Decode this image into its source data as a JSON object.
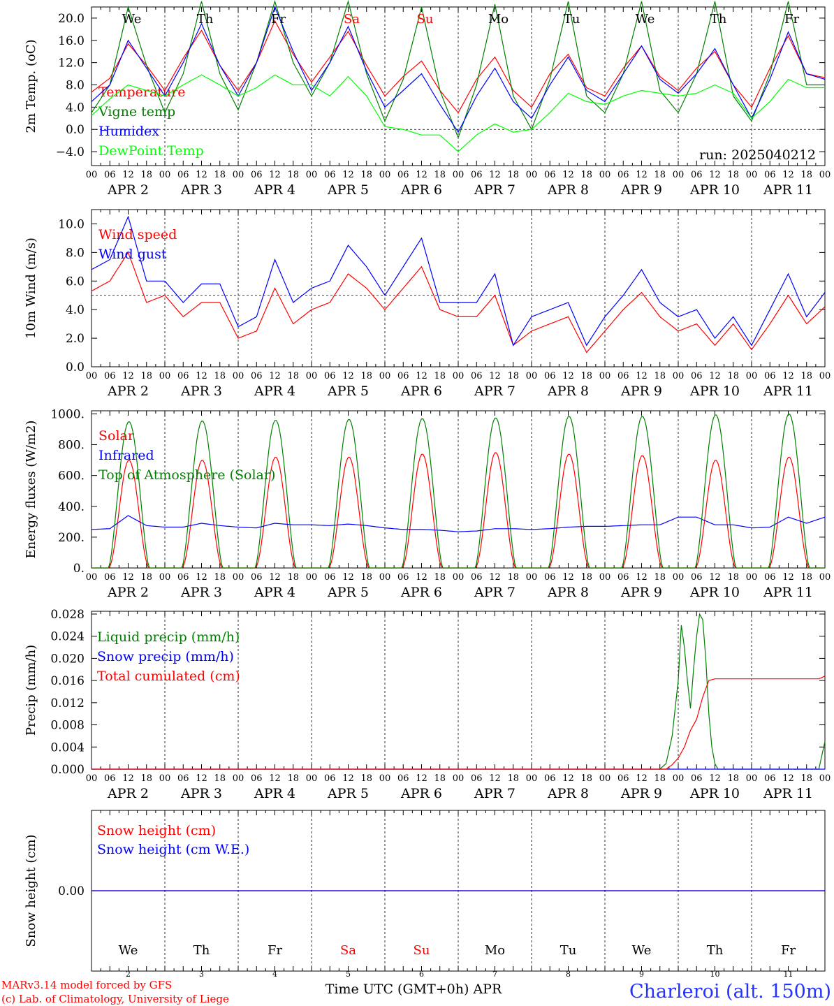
{
  "run_label": "run: 2025040212",
  "station_label": "Charleroi (alt. 150m)",
  "credit_1": "MARv3.14 model forced by GFS",
  "credit_2": "(c) Lab. of Climatology, University of Liege",
  "x_axis_title": "Time UTC (GMT+0h) APR",
  "hour_ticks": [
    "00",
    "06",
    "12",
    "18"
  ],
  "final_hour_label": "00",
  "date_labels": [
    "APR  2",
    "APR  3",
    "APR  4",
    "APR  5",
    "APR  6",
    "APR  7",
    "APR  8",
    "APR  9",
    "APR 10",
    "APR 11"
  ],
  "day_numbers": [
    "2",
    "3",
    "4",
    "5",
    "6",
    "7",
    "8",
    "9",
    "10",
    "11"
  ],
  "weekdays": [
    {
      "label": "We",
      "weekend": false
    },
    {
      "label": "Th",
      "weekend": false
    },
    {
      "label": "Fr",
      "weekend": false
    },
    {
      "label": "Sa",
      "weekend": true
    },
    {
      "label": "Su",
      "weekend": true
    },
    {
      "label": "Mo",
      "weekend": false
    },
    {
      "label": "Tu",
      "weekend": false
    },
    {
      "label": "We",
      "weekend": false
    },
    {
      "label": "Th",
      "weekend": false
    },
    {
      "label": "Fr",
      "weekend": false
    }
  ],
  "colors": {
    "red": "#ff0000",
    "green": "#008000",
    "blue": "#0000ff",
    "lightgreen": "#00ff00",
    "weekend": "#ff0000",
    "station": "#2233ff"
  },
  "chart_data": [
    {
      "type": "line",
      "ylabel": "2m Temp. (oC)",
      "ylim": [
        -6.5,
        22
      ],
      "yticks": [
        -4,
        0,
        4,
        8,
        12,
        16,
        20
      ],
      "ytick_labels": [
        "−4.0",
        "0.0",
        "4.0",
        "8.0",
        "12.0",
        "16.0",
        "20.0"
      ],
      "zero_line": 0,
      "series": [
        {
          "name": "Temperature",
          "color": "red",
          "x": [
            0,
            6,
            12,
            18,
            24,
            30,
            36,
            42,
            48,
            54,
            60,
            66,
            72,
            78,
            84,
            90,
            96,
            102,
            108,
            114,
            120,
            126,
            132,
            138,
            144,
            150,
            156,
            162,
            168,
            174,
            180,
            186,
            192,
            198,
            204,
            210,
            216,
            222,
            228,
            234,
            240
          ],
          "y": [
            6.7,
            9.2,
            15.4,
            11.5,
            7.0,
            12.8,
            17.8,
            11.5,
            7.0,
            12.0,
            19.5,
            13.5,
            8.5,
            13.0,
            17.6,
            11.5,
            6.0,
            9.5,
            12.3,
            7.0,
            3.0,
            9.0,
            13.0,
            7.0,
            4.0,
            10.0,
            13.5,
            7.5,
            6.0,
            11.0,
            15.0,
            9.5,
            7.0,
            11.0,
            14.0,
            8.0,
            4.0,
            11.0,
            16.8,
            10.0,
            9.3
          ]
        },
        {
          "name": "Vigne temp",
          "color": "green",
          "x": [
            0,
            6,
            12,
            18,
            24,
            30,
            36,
            42,
            48,
            54,
            60,
            66,
            72,
            78,
            84,
            90,
            96,
            102,
            108,
            114,
            120,
            126,
            132,
            138,
            144,
            150,
            156,
            162,
            168,
            174,
            180,
            186,
            192,
            198,
            204,
            210,
            216,
            222,
            228,
            234,
            240
          ],
          "y": [
            3.0,
            8.0,
            22.0,
            11.5,
            3.0,
            10.0,
            23.0,
            10.0,
            3.5,
            12.0,
            23.0,
            12.0,
            6.0,
            12.0,
            23.0,
            10.0,
            1.5,
            9.0,
            22.0,
            7.0,
            -1.5,
            8.0,
            22.5,
            6.0,
            0.0,
            9.0,
            23.0,
            6.0,
            3.0,
            10.0,
            23.0,
            7.0,
            3.0,
            10.0,
            23.0,
            6.0,
            1.5,
            10.0,
            23.0,
            8.0,
            8.0
          ]
        },
        {
          "name": "Humidex",
          "color": "blue",
          "x": [
            0,
            6,
            12,
            18,
            24,
            30,
            36,
            42,
            48,
            54,
            60,
            66,
            72,
            78,
            84,
            90,
            96,
            102,
            108,
            114,
            120,
            126,
            132,
            138,
            144,
            150,
            156,
            162,
            168,
            174,
            180,
            186,
            192,
            198,
            204,
            210,
            216,
            222,
            228,
            234,
            240
          ],
          "y": [
            5.0,
            8.0,
            16.0,
            11.0,
            6.0,
            12.0,
            19.0,
            11.5,
            6.0,
            12.0,
            22.0,
            14.0,
            7.0,
            12.0,
            18.5,
            10.5,
            4.0,
            7.0,
            10.0,
            4.5,
            -0.5,
            6.0,
            11.0,
            5.0,
            2.0,
            8.0,
            13.0,
            7.0,
            5.0,
            10.0,
            15.0,
            9.0,
            6.5,
            10.0,
            14.5,
            8.0,
            2.0,
            9.0,
            17.5,
            10.0,
            9.0
          ]
        },
        {
          "name": "DewPoint Temp",
          "color": "lightgreen",
          "x": [
            0,
            6,
            12,
            18,
            24,
            30,
            36,
            42,
            48,
            54,
            60,
            66,
            72,
            78,
            84,
            90,
            96,
            102,
            108,
            114,
            120,
            126,
            132,
            138,
            144,
            150,
            156,
            162,
            168,
            174,
            180,
            186,
            192,
            198,
            204,
            210,
            216,
            222,
            228,
            234,
            240
          ],
          "y": [
            2.5,
            5.5,
            8.0,
            7.0,
            6.0,
            8.0,
            9.8,
            8.0,
            6.0,
            7.5,
            9.8,
            8.0,
            8.0,
            6.0,
            9.5,
            6.0,
            0.5,
            0.0,
            -1.0,
            -1.0,
            -4.0,
            -1.0,
            1.0,
            -0.5,
            0.0,
            3.0,
            6.5,
            5.0,
            4.5,
            6.0,
            7.0,
            6.5,
            6.0,
            6.5,
            8.0,
            6.5,
            2.0,
            5.0,
            9.0,
            7.5,
            7.5
          ]
        }
      ]
    },
    {
      "type": "line",
      "ylabel": "10m Wind (m/s)",
      "ylim": [
        0,
        11
      ],
      "yticks": [
        0,
        2,
        4,
        6,
        8,
        10
      ],
      "ytick_labels": [
        "0.0",
        "2.0",
        "4.0",
        "6.0",
        "8.0",
        "10.0"
      ],
      "ref_line": 5,
      "series": [
        {
          "name": "Wind speed",
          "color": "red",
          "x": [
            0,
            6,
            12,
            18,
            24,
            30,
            36,
            42,
            48,
            54,
            60,
            66,
            72,
            78,
            84,
            90,
            96,
            102,
            108,
            114,
            120,
            126,
            132,
            138,
            144,
            150,
            156,
            162,
            168,
            174,
            180,
            186,
            192,
            198,
            204,
            210,
            216,
            222,
            228,
            234,
            240
          ],
          "y": [
            5.3,
            6.0,
            8.0,
            4.5,
            5.0,
            3.5,
            4.5,
            4.5,
            2.0,
            2.5,
            5.5,
            3.0,
            4.0,
            4.5,
            6.5,
            5.5,
            4.0,
            5.5,
            7.0,
            4.0,
            3.5,
            3.5,
            5.0,
            1.5,
            2.5,
            3.0,
            3.5,
            1.0,
            2.5,
            4.0,
            5.2,
            3.5,
            2.5,
            3.0,
            1.5,
            3.0,
            1.2,
            3.0,
            5.0,
            3.0,
            4.2
          ]
        },
        {
          "name": "Wind gust",
          "color": "blue",
          "x": [
            0,
            6,
            12,
            18,
            24,
            30,
            36,
            42,
            48,
            54,
            60,
            66,
            72,
            78,
            84,
            90,
            96,
            102,
            108,
            114,
            120,
            126,
            132,
            138,
            144,
            150,
            156,
            162,
            168,
            174,
            180,
            186,
            192,
            198,
            204,
            210,
            216,
            222,
            228,
            234,
            240
          ],
          "y": [
            6.8,
            7.5,
            10.5,
            6.0,
            6.0,
            4.5,
            5.8,
            5.8,
            2.8,
            3.5,
            7.5,
            4.5,
            5.5,
            6.0,
            8.5,
            7.0,
            5.0,
            7.0,
            9.0,
            4.5,
            4.5,
            4.5,
            6.5,
            1.5,
            3.5,
            4.0,
            4.5,
            1.5,
            3.5,
            5.0,
            6.8,
            4.5,
            3.5,
            4.0,
            2.0,
            3.5,
            1.5,
            4.0,
            6.5,
            3.5,
            5.2
          ]
        }
      ]
    },
    {
      "type": "line",
      "ylabel": "Energy fluxes (W/m2)",
      "ylim": [
        0,
        1020
      ],
      "yticks": [
        0,
        200,
        400,
        600,
        800,
        1000
      ],
      "ytick_labels": [
        "0.",
        "200.",
        "400.",
        "600.",
        "800.",
        "1000."
      ],
      "daylight": {
        "sunrise_hour": 5.5,
        "sunset_hour": 19.0
      },
      "series": [
        {
          "name": "Solar",
          "color": "red",
          "day_peaks": [
            700,
            700,
            720,
            720,
            740,
            750,
            740,
            730,
            700,
            720
          ]
        },
        {
          "name": "Infrared",
          "color": "blue",
          "x": [
            0,
            6,
            12,
            18,
            24,
            30,
            36,
            42,
            48,
            54,
            60,
            66,
            72,
            78,
            84,
            90,
            96,
            102,
            108,
            114,
            120,
            126,
            132,
            138,
            144,
            150,
            156,
            162,
            168,
            174,
            180,
            186,
            192,
            198,
            204,
            210,
            216,
            222,
            228,
            234,
            240
          ],
          "y": [
            250,
            255,
            340,
            275,
            265,
            265,
            290,
            275,
            265,
            260,
            290,
            280,
            280,
            275,
            285,
            275,
            260,
            250,
            250,
            245,
            235,
            240,
            255,
            255,
            250,
            255,
            265,
            270,
            270,
            275,
            280,
            280,
            330,
            330,
            280,
            280,
            260,
            265,
            330,
            290,
            330
          ]
        },
        {
          "name": "Top of Atmosphere (Solar)",
          "color": "green",
          "day_peaks": [
            950,
            955,
            960,
            965,
            970,
            975,
            985,
            985,
            995,
            1000
          ]
        }
      ]
    },
    {
      "type": "line",
      "ylabel": "Precip (mm/h)",
      "ylim": [
        0,
        0.0285
      ],
      "yticks": [
        0,
        0.004,
        0.008,
        0.012,
        0.016,
        0.02,
        0.024,
        0.028
      ],
      "ytick_labels": [
        "0.000",
        "0.004",
        "0.008",
        "0.012",
        "0.016",
        "0.020",
        "0.024",
        "0.028"
      ],
      "series": [
        {
          "name": "Liquid precip (mm/h)",
          "color": "green",
          "x": [
            0,
            186,
            188,
            190,
            192,
            193,
            194,
            195,
            196,
            197,
            198,
            199,
            200,
            201,
            202,
            203,
            204,
            205,
            206,
            207,
            238,
            240
          ],
          "y": [
            0,
            0,
            0.001,
            0.006,
            0.016,
            0.026,
            0.022,
            0.016,
            0.011,
            0.018,
            0.024,
            0.028,
            0.027,
            0.02,
            0.01,
            0.004,
            0.001,
            0,
            0,
            0,
            0,
            0.005
          ]
        },
        {
          "name": "Snow precip (mm/h)",
          "color": "blue",
          "x": [
            0,
            240
          ],
          "y": [
            0,
            0
          ]
        },
        {
          "name": "Total cumulated (cm)",
          "color": "red",
          "x": [
            0,
            188,
            190,
            192,
            194,
            196,
            198,
            200,
            202,
            204,
            206,
            238,
            240
          ],
          "y": [
            0,
            0,
            0.0008,
            0.002,
            0.004,
            0.007,
            0.009,
            0.013,
            0.016,
            0.0163,
            0.0163,
            0.0163,
            0.0168
          ]
        }
      ]
    },
    {
      "type": "line",
      "ylabel": "Snow height (cm)",
      "ylim": [
        -1,
        1
      ],
      "yticks": [
        0
      ],
      "ytick_labels": [
        "0.00"
      ],
      "series": [
        {
          "name": "Snow height (cm)",
          "color": "red",
          "x": [
            0,
            240
          ],
          "y": [
            0,
            0
          ]
        },
        {
          "name": "Snow height (cm W.E.)",
          "color": "blue",
          "x": [
            0,
            240
          ],
          "y": [
            0,
            0
          ]
        }
      ]
    }
  ]
}
